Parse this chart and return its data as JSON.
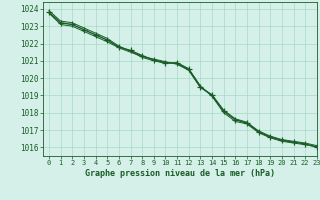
{
  "title": "Graphe pression niveau de la mer (hPa)",
  "background_color": "#d4f0e8",
  "grid_color": "#a8d8c8",
  "line_color": "#1a5c28",
  "text_color": "#1a5c28",
  "xlim": [
    -0.5,
    23
  ],
  "ylim": [
    1015.5,
    1024.4
  ],
  "yticks": [
    1016,
    1017,
    1018,
    1019,
    1020,
    1021,
    1022,
    1023,
    1024
  ],
  "xticks": [
    0,
    1,
    2,
    3,
    4,
    5,
    6,
    7,
    8,
    9,
    10,
    11,
    12,
    13,
    14,
    15,
    16,
    17,
    18,
    19,
    20,
    21,
    22,
    23
  ],
  "series": [
    {
      "x": [
        0,
        1,
        2,
        3,
        4,
        5,
        6,
        7,
        8,
        9,
        10,
        11,
        12,
        13,
        14,
        15,
        16,
        17,
        18,
        19,
        20,
        21,
        22,
        23
      ],
      "y": [
        1023.8,
        1023.2,
        1023.1,
        1022.8,
        1022.5,
        1022.2,
        1021.8,
        1021.6,
        1021.3,
        1021.05,
        1020.9,
        1020.85,
        1020.5,
        1019.5,
        1019.0,
        1018.1,
        1017.6,
        1017.4,
        1016.9,
        1016.6,
        1016.4,
        1016.3,
        1016.2,
        1016.0
      ],
      "marker": "+",
      "linewidth": 1.0,
      "markersize": 4
    },
    {
      "x": [
        0,
        1,
        2,
        3,
        4,
        5,
        6,
        7,
        8,
        9,
        10,
        11,
        12,
        13,
        14,
        15,
        16,
        17,
        18,
        19,
        20,
        21,
        22,
        23
      ],
      "y": [
        1023.9,
        1023.3,
        1023.2,
        1022.9,
        1022.6,
        1022.3,
        1021.85,
        1021.55,
        1021.2,
        1021.0,
        1020.85,
        1020.9,
        1020.55,
        1019.55,
        1018.95,
        1018.0,
        1017.5,
        1017.35,
        1016.85,
        1016.55,
        1016.35,
        1016.25,
        1016.15,
        1016.05
      ],
      "marker": null,
      "linewidth": 0.7,
      "markersize": 0
    },
    {
      "x": [
        0,
        1,
        2,
        3,
        4,
        5,
        6,
        7,
        8,
        9,
        10,
        11,
        12,
        13,
        14,
        15,
        16,
        17,
        18,
        19,
        20,
        21,
        22,
        23
      ],
      "y": [
        1023.75,
        1023.1,
        1023.0,
        1022.7,
        1022.4,
        1022.1,
        1021.75,
        1021.5,
        1021.25,
        1021.1,
        1020.95,
        1020.8,
        1020.45,
        1019.45,
        1019.05,
        1018.15,
        1017.65,
        1017.45,
        1016.95,
        1016.65,
        1016.45,
        1016.35,
        1016.25,
        1016.1
      ],
      "marker": null,
      "linewidth": 0.7,
      "markersize": 0
    }
  ]
}
